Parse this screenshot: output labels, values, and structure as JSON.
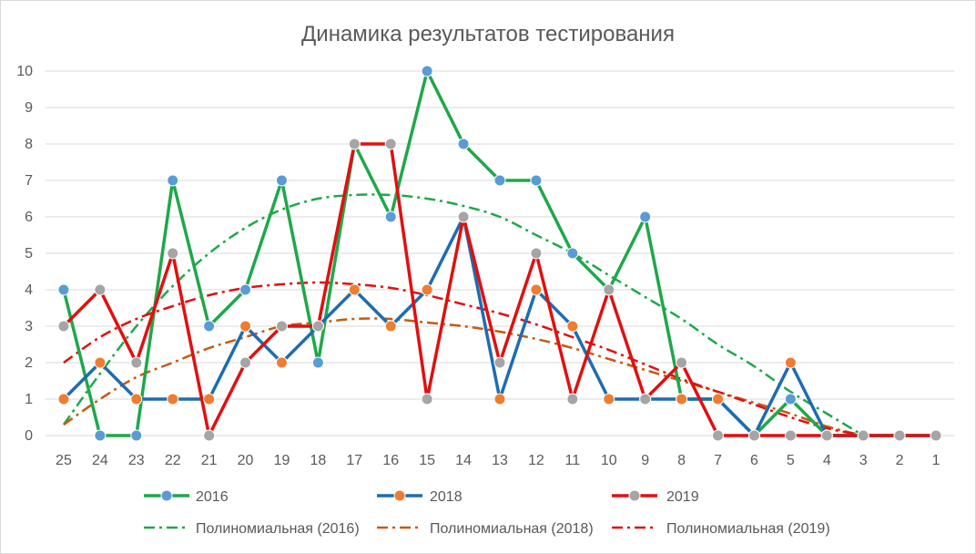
{
  "chart_data": {
    "type": "line",
    "title": "Динамика результатов тестирования",
    "xlabel": "",
    "ylabel": "",
    "categories": [
      "25",
      "24",
      "23",
      "22",
      "21",
      "20",
      "19",
      "18",
      "17",
      "16",
      "15",
      "14",
      "13",
      "12",
      "11",
      "10",
      "9",
      "8",
      "7",
      "6",
      "5",
      "4",
      "3",
      "2",
      "1"
    ],
    "ylim": [
      0,
      10
    ],
    "yticks": [
      "0",
      "1",
      "2",
      "3",
      "4",
      "5",
      "6",
      "7",
      "8",
      "9",
      "10"
    ],
    "grid": true,
    "legend": "bottom",
    "series": [
      {
        "name": "2016",
        "color": "#1ea84a",
        "marker_color": "#5b9bd5",
        "values": [
          4,
          0,
          0,
          7,
          3,
          4,
          7,
          2,
          8,
          6,
          10,
          8,
          7,
          7,
          5,
          4,
          6,
          1,
          1,
          0,
          1,
          0,
          0,
          0,
          0
        ]
      },
      {
        "name": "2018",
        "color": "#1f6cb0",
        "marker_color": "#ed7d31",
        "values": [
          1,
          2,
          1,
          1,
          1,
          3,
          2,
          3,
          4,
          3,
          4,
          6,
          1,
          4,
          3,
          1,
          1,
          1,
          1,
          0,
          2,
          0,
          0,
          0,
          0
        ]
      },
      {
        "name": "2019",
        "color": "#e01010",
        "marker_color": "#a5a5a5",
        "values": [
          3,
          4,
          2,
          5,
          0,
          2,
          3,
          3,
          8,
          8,
          1,
          6,
          2,
          5,
          1,
          4,
          1,
          2,
          0,
          0,
          0,
          0,
          0,
          0,
          0
        ]
      }
    ],
    "trendlines": [
      {
        "name": "Полиномиальная (2016)",
        "color": "#1ea84a",
        "values": [
          0.3,
          1.7,
          3.0,
          4.1,
          5.0,
          5.7,
          6.2,
          6.5,
          6.6,
          6.6,
          6.5,
          6.3,
          6.0,
          5.5,
          5.0,
          4.4,
          3.8,
          3.2,
          2.5,
          1.9,
          1.2,
          0.6,
          0.0,
          0.0,
          0.0
        ]
      },
      {
        "name": "Полиномиальная (2018)",
        "color": "#c55a11",
        "values": [
          0.3,
          1.0,
          1.6,
          2.0,
          2.4,
          2.7,
          3.0,
          3.1,
          3.2,
          3.2,
          3.1,
          3.0,
          2.85,
          2.65,
          2.4,
          2.1,
          1.8,
          1.5,
          1.2,
          0.9,
          0.6,
          0.25,
          0.0,
          0.0,
          0.0
        ]
      },
      {
        "name": "Полиномиальная (2019)",
        "color": "#e01010",
        "values": [
          2.0,
          2.7,
          3.2,
          3.55,
          3.85,
          4.05,
          4.15,
          4.2,
          4.15,
          4.05,
          3.85,
          3.6,
          3.35,
          3.05,
          2.7,
          2.35,
          1.95,
          1.55,
          1.2,
          0.85,
          0.5,
          0.2,
          0.0,
          0.0,
          0.0
        ]
      }
    ]
  }
}
